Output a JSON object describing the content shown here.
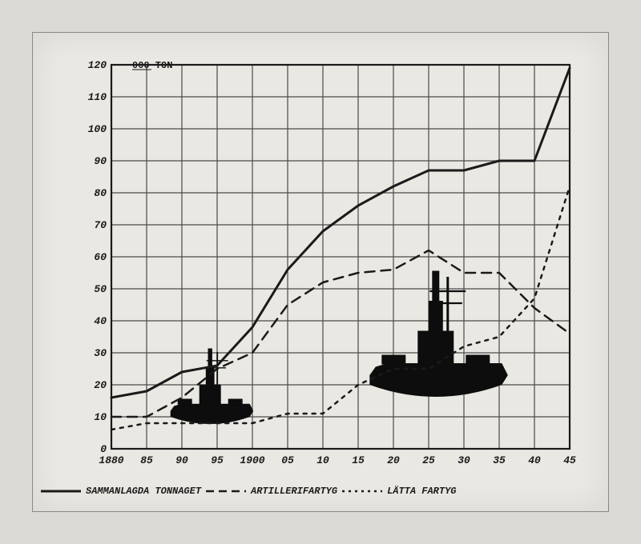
{
  "chart": {
    "type": "line",
    "title": "120 000 TON",
    "title_fontsize": 14,
    "xlabel": "",
    "ylabel": "",
    "background_color": "#eae8e3",
    "grid_color": "#4a4a4a",
    "axis_color": "#1a1a1a",
    "xlim": [
      1880,
      1945
    ],
    "ylim": [
      0,
      120
    ],
    "xtick_step": 5,
    "ytick_step": 10,
    "xticks": [
      "1880",
      "85",
      "90",
      "95",
      "1900",
      "05",
      "10",
      "15",
      "20",
      "25",
      "30",
      "35",
      "40",
      "45"
    ],
    "yticks": [
      "0",
      "10",
      "20",
      "30",
      "40",
      "50",
      "60",
      "70",
      "80",
      "90",
      "100",
      "110",
      "120"
    ],
    "label_fontsize": 13,
    "series": [
      {
        "name": "SAMMANLAGDA TONNAGET",
        "dash": "solid",
        "color": "#1a1a1a",
        "width": 3,
        "x": [
          1880,
          1885,
          1890,
          1895,
          1900,
          1905,
          1910,
          1915,
          1920,
          1925,
          1930,
          1935,
          1940,
          1945
        ],
        "y": [
          16,
          18,
          24,
          26,
          38,
          56,
          68,
          76,
          82,
          87,
          87,
          90,
          90,
          119
        ]
      },
      {
        "name": "ARTILLERIFARTYG",
        "dash": "dash",
        "color": "#1a1a1a",
        "width": 2.5,
        "x": [
          1880,
          1885,
          1890,
          1895,
          1900,
          1905,
          1910,
          1915,
          1920,
          1925,
          1930,
          1935,
          1940,
          1945
        ],
        "y": [
          10,
          10,
          16,
          25,
          30,
          45,
          52,
          55,
          56,
          62,
          55,
          55,
          44,
          36
        ]
      },
      {
        "name": "LÄTTA FARTYG",
        "dash": "dot",
        "color": "#1a1a1a",
        "width": 2.5,
        "x": [
          1880,
          1885,
          1890,
          1895,
          1900,
          1905,
          1910,
          1915,
          1920,
          1925,
          1930,
          1935,
          1940,
          1945
        ],
        "y": [
          6,
          8,
          8,
          8,
          8,
          11,
          11,
          20,
          25,
          25,
          32,
          35,
          47,
          82
        ]
      }
    ],
    "ship_color": "#0d0d0d",
    "legend_linewidth": 2
  }
}
